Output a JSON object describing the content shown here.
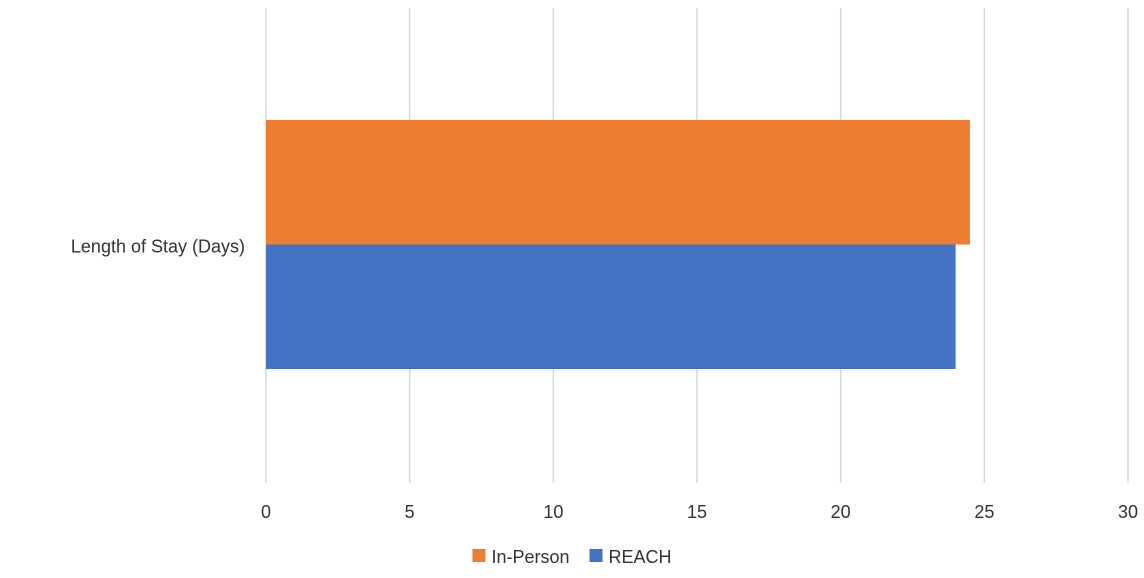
{
  "chart_data": {
    "type": "bar",
    "orientation": "horizontal",
    "categories": [
      "Length of Stay (Days)"
    ],
    "series": [
      {
        "name": "In-Person",
        "values": [
          24.5
        ],
        "color": "#ED7D31"
      },
      {
        "name": "REACH",
        "values": [
          24.0
        ],
        "color": "#4472C4"
      }
    ],
    "xlim": [
      0,
      30
    ],
    "xticks": [
      0,
      5,
      10,
      15,
      20,
      25,
      30
    ],
    "title": "",
    "xlabel": "",
    "ylabel": "",
    "grid": "vertical",
    "legend_position": "bottom"
  }
}
